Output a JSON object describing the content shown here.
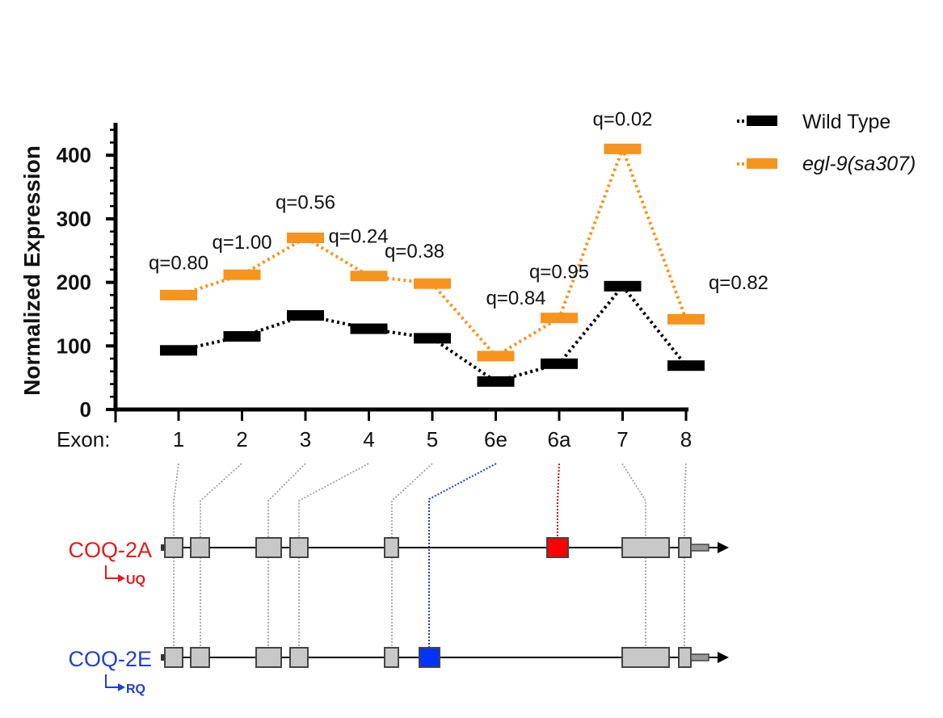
{
  "chart_data": {
    "type": "line",
    "ylabel": "Normalized Expression",
    "xlabel": "Exon:",
    "ylim": [
      0,
      450
    ],
    "y_ticks": [
      "0",
      "100",
      "200",
      "300",
      "400"
    ],
    "categories": [
      "1",
      "2",
      "3",
      "4",
      "5",
      "6e",
      "6a",
      "7",
      "8"
    ],
    "series": [
      {
        "name": "Wild Type",
        "color": "#000000",
        "values": [
          93,
          115,
          148,
          127,
          112,
          44,
          72,
          194,
          69
        ]
      },
      {
        "name": "egl-9(sa307)",
        "color": "#f7941d",
        "values": [
          180,
          212,
          270,
          210,
          198,
          84,
          144,
          410,
          142
        ]
      }
    ],
    "annotations": [
      "q=0.80",
      "q=1.00",
      "q=0.56",
      "q=0.24",
      "q=0.38",
      "q=0.84",
      "q=0.95",
      "q=0.02",
      "q=0.82"
    ]
  },
  "legend": {
    "wild_type": "Wild Type",
    "mutant": "egl-9(sa307)"
  },
  "gene_models": {
    "isoform_a": {
      "name": "COQ-2A",
      "subtitle": "UQ",
      "color": "#e41a1c",
      "special_color": "#ff0000",
      "special_exon": "6a"
    },
    "isoform_e": {
      "name": "COQ-2E",
      "subtitle": "RQ",
      "color": "#1f3fcf",
      "special_color": "#0033ff",
      "special_exon": "6e"
    }
  }
}
